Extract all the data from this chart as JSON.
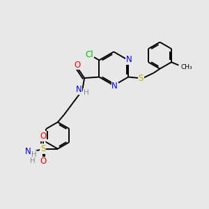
{
  "bg_color": "#e8e8e8",
  "atom_colors": {
    "C": "#000000",
    "N": "#0000ee",
    "O": "#ee0000",
    "S": "#bbaa00",
    "Cl": "#00bb00",
    "H": "#888888"
  },
  "bond_color": "#000000",
  "bond_lw": 1.4,
  "font_size": 8.5,
  "fig_size": [
    3.0,
    3.0
  ],
  "dpi": 100,
  "xlim": [
    0,
    10
  ],
  "ylim": [
    0,
    10
  ]
}
